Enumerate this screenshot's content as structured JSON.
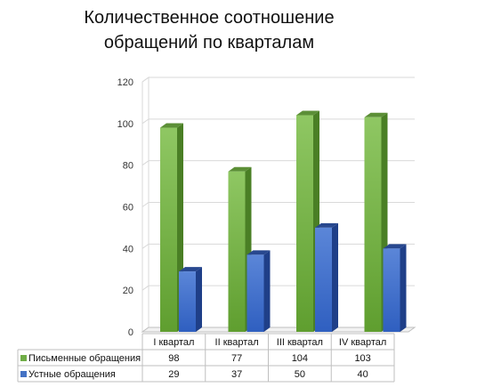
{
  "chart_data": {
    "type": "bar",
    "title": "Количественное соотношение\nобращений по кварталам",
    "categories": [
      "I квартал",
      "II квартал",
      "III квартал",
      "IV квартал"
    ],
    "series": [
      {
        "name": "Письменные обращения",
        "values": [
          98,
          77,
          104,
          103
        ],
        "color": "#70ad47"
      },
      {
        "name": "Устные обращения",
        "values": [
          29,
          37,
          50,
          40
        ],
        "color": "#4472c4"
      }
    ],
    "ylim": [
      0,
      120
    ],
    "yticks": [
      0,
      20,
      40,
      60,
      80,
      100,
      120
    ],
    "grid": true,
    "legend": "data-table"
  }
}
